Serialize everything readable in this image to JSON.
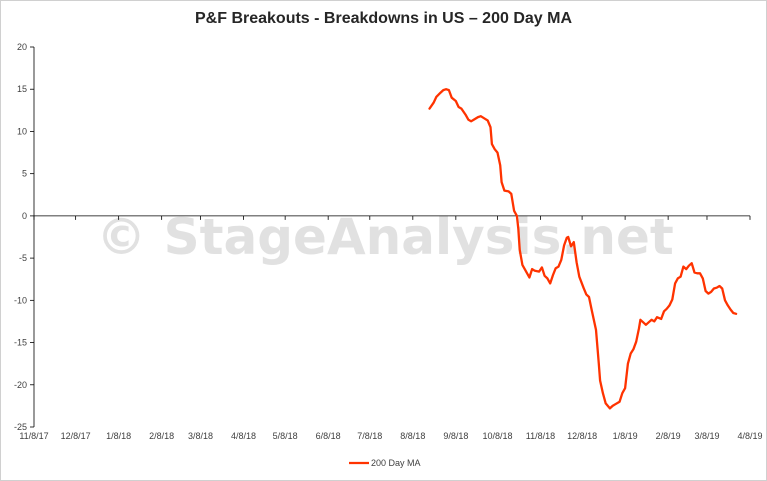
{
  "chart_data": {
    "type": "line",
    "title": "P&F Breakouts - Breakdowns in US – 200 Day MA",
    "watermark": "© StageAnalysis.net",
    "xlabel": "",
    "ylabel": "",
    "ylim": [
      -25,
      20
    ],
    "yticks": [
      20,
      15,
      10,
      5,
      0,
      -5,
      -10,
      -15,
      -20,
      -25
    ],
    "xlim": [
      "2017-11-08",
      "2019-04-08"
    ],
    "xticks": [
      {
        "date": "2017-11-08",
        "label": "11/8/17"
      },
      {
        "date": "2017-12-08",
        "label": "12/8/17"
      },
      {
        "date": "2018-01-08",
        "label": "1/8/18"
      },
      {
        "date": "2018-02-08",
        "label": "2/8/18"
      },
      {
        "date": "2018-03-08",
        "label": "3/8/18"
      },
      {
        "date": "2018-04-08",
        "label": "4/8/18"
      },
      {
        "date": "2018-05-08",
        "label": "5/8/18"
      },
      {
        "date": "2018-06-08",
        "label": "6/8/18"
      },
      {
        "date": "2018-07-08",
        "label": "7/8/18"
      },
      {
        "date": "2018-08-08",
        "label": "8/8/18"
      },
      {
        "date": "2018-09-08",
        "label": "9/8/18"
      },
      {
        "date": "2018-10-08",
        "label": "10/8/18"
      },
      {
        "date": "2018-11-08",
        "label": "11/8/18"
      },
      {
        "date": "2018-12-08",
        "label": "12/8/18"
      },
      {
        "date": "2019-01-08",
        "label": "1/8/19"
      },
      {
        "date": "2019-02-08",
        "label": "2/8/19"
      },
      {
        "date": "2019-03-08",
        "label": "3/8/19"
      },
      {
        "date": "2019-04-08",
        "label": "4/8/19"
      }
    ],
    "grid": false,
    "legend_position": "bottom",
    "series": [
      {
        "name": "200 Day MA",
        "color": "#ff3300",
        "points": [
          [
            "2018-08-20",
            12.7
          ],
          [
            "2018-08-23",
            13.4
          ],
          [
            "2018-08-25",
            14.1
          ],
          [
            "2018-08-28",
            14.6
          ],
          [
            "2018-08-30",
            14.9
          ],
          [
            "2018-09-01",
            15.0
          ],
          [
            "2018-09-03",
            14.9
          ],
          [
            "2018-09-05",
            14.0
          ],
          [
            "2018-09-08",
            13.6
          ],
          [
            "2018-09-10",
            12.9
          ],
          [
            "2018-09-12",
            12.7
          ],
          [
            "2018-09-15",
            12.0
          ],
          [
            "2018-09-17",
            11.4
          ],
          [
            "2018-09-19",
            11.2
          ],
          [
            "2018-09-21",
            11.4
          ],
          [
            "2018-09-24",
            11.7
          ],
          [
            "2018-09-26",
            11.8
          ],
          [
            "2018-09-29",
            11.5
          ],
          [
            "2018-10-01",
            11.3
          ],
          [
            "2018-10-03",
            10.5
          ],
          [
            "2018-10-04",
            8.5
          ],
          [
            "2018-10-06",
            7.9
          ],
          [
            "2018-10-08",
            7.5
          ],
          [
            "2018-10-10",
            6.0
          ],
          [
            "2018-10-11",
            4.0
          ],
          [
            "2018-10-13",
            3.0
          ],
          [
            "2018-10-16",
            2.9
          ],
          [
            "2018-10-18",
            2.6
          ],
          [
            "2018-10-20",
            0.6
          ],
          [
            "2018-10-22",
            0.0
          ],
          [
            "2018-10-23",
            -1.5
          ],
          [
            "2018-10-24",
            -4.0
          ],
          [
            "2018-10-26",
            -5.8
          ],
          [
            "2018-10-28",
            -6.4
          ],
          [
            "2018-10-31",
            -7.3
          ],
          [
            "2018-11-02",
            -6.3
          ],
          [
            "2018-11-04",
            -6.5
          ],
          [
            "2018-11-07",
            -6.6
          ],
          [
            "2018-11-09",
            -6.1
          ],
          [
            "2018-11-11",
            -7.1
          ],
          [
            "2018-11-13",
            -7.4
          ],
          [
            "2018-11-15",
            -8.0
          ],
          [
            "2018-11-17",
            -7.0
          ],
          [
            "2018-11-19",
            -6.2
          ],
          [
            "2018-11-21",
            -6.0
          ],
          [
            "2018-11-23",
            -5.2
          ],
          [
            "2018-11-25",
            -3.5
          ],
          [
            "2018-11-27",
            -2.6
          ],
          [
            "2018-11-28",
            -2.5
          ],
          [
            "2018-11-30",
            -3.6
          ],
          [
            "2018-12-02",
            -3.1
          ],
          [
            "2018-12-04",
            -5.5
          ],
          [
            "2018-12-06",
            -7.2
          ],
          [
            "2018-12-09",
            -8.5
          ],
          [
            "2018-12-11",
            -9.3
          ],
          [
            "2018-12-13",
            -9.6
          ],
          [
            "2018-12-15",
            -11.2
          ],
          [
            "2018-12-18",
            -13.5
          ],
          [
            "2018-12-20",
            -17.5
          ],
          [
            "2018-12-21",
            -19.5
          ],
          [
            "2018-12-23",
            -21.0
          ],
          [
            "2018-12-25",
            -22.2
          ],
          [
            "2018-12-28",
            -22.8
          ],
          [
            "2018-12-30",
            -22.5
          ],
          [
            "2019-01-01",
            -22.3
          ],
          [
            "2019-01-04",
            -22.0
          ],
          [
            "2019-01-06",
            -21.0
          ],
          [
            "2019-01-08",
            -20.4
          ],
          [
            "2019-01-10",
            -17.5
          ],
          [
            "2019-01-12",
            -16.3
          ],
          [
            "2019-01-14",
            -15.8
          ],
          [
            "2019-01-16",
            -14.9
          ],
          [
            "2019-01-18",
            -13.3
          ],
          [
            "2019-01-19",
            -12.3
          ],
          [
            "2019-01-21",
            -12.6
          ],
          [
            "2019-01-23",
            -12.9
          ],
          [
            "2019-01-25",
            -12.6
          ],
          [
            "2019-01-27",
            -12.3
          ],
          [
            "2019-01-29",
            -12.5
          ],
          [
            "2019-01-31",
            -12.0
          ],
          [
            "2019-02-03",
            -12.2
          ],
          [
            "2019-02-05",
            -11.3
          ],
          [
            "2019-02-07",
            -11.0
          ],
          [
            "2019-02-09",
            -10.6
          ],
          [
            "2019-02-11",
            -9.9
          ],
          [
            "2019-02-13",
            -8.0
          ],
          [
            "2019-02-15",
            -7.4
          ],
          [
            "2019-02-17",
            -7.2
          ],
          [
            "2019-02-19",
            -6.0
          ],
          [
            "2019-02-21",
            -6.3
          ],
          [
            "2019-02-23",
            -5.9
          ],
          [
            "2019-02-25",
            -5.6
          ],
          [
            "2019-02-27",
            -6.7
          ],
          [
            "2019-03-01",
            -6.8
          ],
          [
            "2019-03-03",
            -6.8
          ],
          [
            "2019-03-05",
            -7.4
          ],
          [
            "2019-03-07",
            -8.9
          ],
          [
            "2019-03-09",
            -9.2
          ],
          [
            "2019-03-11",
            -9.0
          ],
          [
            "2019-03-13",
            -8.6
          ],
          [
            "2019-03-15",
            -8.5
          ],
          [
            "2019-03-17",
            -8.3
          ],
          [
            "2019-03-19",
            -8.6
          ],
          [
            "2019-03-21",
            -10.0
          ],
          [
            "2019-03-23",
            -10.6
          ],
          [
            "2019-03-25",
            -11.1
          ],
          [
            "2019-03-27",
            -11.5
          ],
          [
            "2019-03-29",
            -11.6
          ]
        ]
      }
    ]
  }
}
